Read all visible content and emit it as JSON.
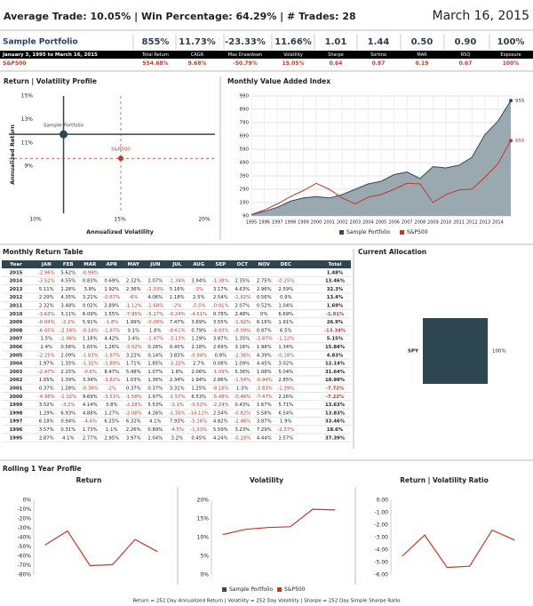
{
  "header": {
    "summary": "Average Trade: 10.05% | Win Percentage: 64.29% | # Trades: 28",
    "date": "March 16, 2015"
  },
  "stats": {
    "period": "January 3, 1995 to March 16, 2015",
    "headers": [
      "Total Return",
      "CAGR",
      "Max Drawdown",
      "Volatility",
      "Sharpe",
      "Sortino",
      "MAR",
      "RSQ",
      "Exposure"
    ],
    "rows": [
      {
        "name": "Sample Portfolio",
        "values": [
          "855%",
          "11.73%",
          "-23.33%",
          "11.66%",
          "1.01",
          "1.44",
          "0.50",
          "0.90",
          "100%"
        ]
      },
      {
        "name": "S&P500",
        "values": [
          "554.68%",
          "9.68%",
          "-50.79%",
          "15.05%",
          "0.64",
          "0.87",
          "0.19",
          "0.67",
          "100%"
        ]
      }
    ]
  },
  "monthly_table": {
    "title": "Monthly Return Table",
    "header": [
      "Year",
      "JAN",
      "FEB",
      "MAR",
      "APR",
      "MAY",
      "JUN",
      "JUL",
      "AUG",
      "SEP",
      "OCT",
      "NOV",
      "DEC",
      "Total"
    ],
    "rows": [
      [
        "2015",
        "-2.96%",
        "5.62%",
        "-0.99%",
        null,
        null,
        null,
        null,
        null,
        null,
        null,
        null,
        null,
        "1.48%"
      ],
      [
        "2014",
        "-3.52%",
        "4.55%",
        "0.83%",
        "0.69%",
        "2.32%",
        "2.07%",
        "-1.34%",
        "3.94%",
        "-1.38%",
        "2.35%",
        "2.75%",
        "-0.25%",
        "13.46%"
      ],
      [
        "2013",
        "5.11%",
        "1.28%",
        "3.8%",
        "1.92%",
        "2.36%",
        "-1.33%",
        "5.16%",
        "-3%",
        "3.17%",
        "4.63%",
        "2.96%",
        "2.59%",
        "32.3%"
      ],
      [
        "2012",
        "2.29%",
        "4.35%",
        "3.21%",
        "-0.67%",
        "-6%",
        "4.06%",
        "1.18%",
        "2.5%",
        "2.54%",
        "-1.82%",
        "0.56%",
        "0.9%",
        "13.4%"
      ],
      [
        "2011",
        "2.32%",
        "3.48%",
        "0.02%",
        "2.89%",
        "-1.12%",
        "-1.68%",
        "-2%",
        "-5.5%",
        "-0.01%",
        "2.07%",
        "0.52%",
        "1.04%",
        "1.69%"
      ],
      [
        "2010",
        "-3.63%",
        "3.11%",
        "6.09%",
        "1.55%",
        "-7.95%",
        "-5.17%",
        "-0.24%",
        "-4.51%",
        "0.78%",
        "2.48%",
        "0%",
        "6.69%",
        "-1.91%"
      ],
      [
        "2009",
        "-0.04%",
        "-2.2%",
        "5.91%",
        "-1.8%",
        "1.99%",
        "-0.06%",
        "7.47%",
        "3.69%",
        "3.55%",
        "-1.92%",
        "6.16%",
        "1.91%",
        "26.9%"
      ],
      [
        "2008",
        "-6.05%",
        "-2.58%",
        "-0.14%",
        "-1.97%",
        "0.1%",
        "1.8%",
        "-0.61%",
        "0.79%",
        "-4.03%",
        "-8.09%",
        "0.87%",
        "6.5%",
        "-13.34%"
      ],
      [
        "2007",
        "1.5%",
        "-1.96%",
        "1.16%",
        "4.42%",
        "3.4%",
        "-1.47%",
        "-3.13%",
        "1.29%",
        "3.87%",
        "1.35%",
        "-3.87%",
        "-1.12%",
        "5.15%"
      ],
      [
        "2006",
        "2.4%",
        "0.58%",
        "1.65%",
        "1.26%",
        "-3.02%",
        "0.26%",
        "0.45%",
        "2.18%",
        "2.69%",
        "3.16%",
        "1.98%",
        "1.34%",
        "15.84%"
      ],
      [
        "2005",
        "-2.25%",
        "2.09%",
        "-1.83%",
        "-1.87%",
        "3.22%",
        "0.14%",
        "3.83%",
        "-0.94%",
        "0.8%",
        "-2.36%",
        "4.39%",
        "-0.18%",
        "4.83%"
      ],
      [
        "2004",
        "1.97%",
        "1.35%",
        "-1.32%",
        "-1.89%",
        "1.71%",
        "1.85%",
        "-3.22%",
        "2.7%",
        "0.08%",
        "1.09%",
        "4.45%",
        "3.02%",
        "12.14%"
      ],
      [
        "2003",
        "-2.47%",
        "2.15%",
        "-0.6%",
        "8.47%",
        "5.48%",
        "1.07%",
        "1.8%",
        "2.06%",
        "-1.09%",
        "5.36%",
        "1.08%",
        "5.04%",
        "31.64%"
      ],
      [
        "2002",
        "1.05%",
        "1.39%",
        "3.34%",
        "-3.82%",
        "1.03%",
        "1.36%",
        "2.34%",
        "2.94%",
        "2.86%",
        "-1.54%",
        "-0.94%",
        "2.85%",
        "10.99%"
      ],
      [
        "2001",
        "0.37%",
        "1.28%",
        "-0.36%",
        "-2%",
        "0.37%",
        "0.37%",
        "3.31%",
        "1.25%",
        "-8.16%",
        "1.3%",
        "-3.83%",
        "-1.39%",
        "-7.72%"
      ],
      [
        "2000",
        "-4.98%",
        "-1.32%",
        "9.69%",
        "-3.51%",
        "-1.58%",
        "1.97%",
        "-1.57%",
        "6.53%",
        "-5.48%",
        "-0.46%",
        "-7.47%",
        "2.26%",
        "-7.22%"
      ],
      [
        "1999",
        "3.52%",
        "-3.2%",
        "4.14%",
        "3.8%",
        "-2.28%",
        "5.53%",
        "-3.1%",
        "-0.52%",
        "-2.24%",
        "0.43%",
        "1.67%",
        "5.71%",
        "13.63%"
      ],
      [
        "1998",
        "1.29%",
        "6.93%",
        "4.88%",
        "1.27%",
        "-2.08%",
        "4.26%",
        "-1.35%",
        "-14.11%",
        "2.54%",
        "-0.82%",
        "5.58%",
        "6.54%",
        "13.83%"
      ],
      [
        "1997",
        "6.18%",
        "0.94%",
        "-4.4%",
        "6.25%",
        "6.32%",
        "4.1%",
        "7.93%",
        "-5.16%",
        "4.82%",
        "-2.46%",
        "3.87%",
        "1.9%",
        "33.46%"
      ],
      [
        "1996",
        "3.57%",
        "0.31%",
        "1.73%",
        "1.1%",
        "2.26%",
        "0.89%",
        "-4.5%",
        "-1.33%",
        "5.59%",
        "3.23%",
        "7.29%",
        "-2.37%",
        "18.6%"
      ],
      [
        "1995",
        "2.87%",
        "4.1%",
        "2.77%",
        "2.95%",
        "3.97%",
        "2.04%",
        "3.2%",
        "0.45%",
        "4.24%",
        "-0.29%",
        "4.44%",
        "1.57%",
        "37.39%"
      ]
    ]
  },
  "rolling": {
    "title": "Rolling 1 Year Profile",
    "footnote": "Return = 252 Day Annualized Return | Volatility = 252 Day Volatility | Sharpe = 252 Day Simple Sharpe Ratio"
  },
  "chart_data": [
    {
      "type": "scatter",
      "title": "Return | Volatility Profile",
      "x_label": "Annualized Volatility",
      "y_label": "Annualized Return",
      "series": [
        {
          "name": "Sample Portfolio",
          "color": "#2e4650",
          "x": [
            11.66
          ],
          "values": [
            11.73
          ]
        },
        {
          "name": "S&P500",
          "color": "#c0392b",
          "x": [
            15.05
          ],
          "values": [
            9.68
          ]
        }
      ],
      "xlim": [
        10,
        20
      ],
      "xticks": [
        {
          "value": 10,
          "label": "10%"
        },
        {
          "value": 15,
          "label": "15%"
        },
        {
          "value": 20,
          "label": "20%"
        }
      ],
      "ylim": [
        5,
        15
      ],
      "yticks": [
        {
          "value": 9,
          "label": "9%"
        },
        {
          "value": 11,
          "label": "11%"
        },
        {
          "value": 13,
          "label": "13%"
        },
        {
          "value": 15,
          "label": "15%"
        }
      ]
    },
    {
      "type": "line",
      "title": "Monthly Value Added Index",
      "grid": true,
      "end_labels": true,
      "x": [
        1995,
        1996,
        1997,
        1998,
        1999,
        2000,
        2001,
        2002,
        2003,
        2004,
        2005,
        2006,
        2007,
        2008,
        2009,
        2010,
        2011,
        2012,
        2013,
        2014,
        2015
      ],
      "series": [
        {
          "name": "Sample Portfolio",
          "color": "#34495e",
          "area": "#9aa9b0",
          "values": [
            100,
            125,
            155,
            200,
            225,
            235,
            225,
            250,
            290,
            330,
            350,
            400,
            420,
            370,
            460,
            450,
            470,
            530,
            700,
            800,
            955
          ]
        },
        {
          "name": "S&P500",
          "color": "#c0392b",
          "values": [
            100,
            135,
            180,
            235,
            280,
            335,
            290,
            225,
            180,
            230,
            250,
            290,
            335,
            330,
            190,
            250,
            285,
            290,
            380,
            480,
            655
          ]
        }
      ],
      "xlim": [
        1995,
        2015
      ],
      "xticks": [
        1995,
        1996,
        1997,
        1998,
        1999,
        2000,
        2001,
        2002,
        2003,
        2004,
        2005,
        2006,
        2007,
        2008,
        2009,
        2010,
        2011,
        2012,
        2013,
        2014
      ],
      "ylim": [
        90,
        990
      ],
      "yticks": [
        90,
        190,
        290,
        390,
        490,
        590,
        690,
        790,
        890,
        990
      ]
    },
    {
      "type": "bar",
      "title": "Current Allocation",
      "orientation": "horizontal",
      "categories": [
        "SPY"
      ],
      "values": [
        100
      ],
      "value_labels": [
        "100%"
      ],
      "color": "#2e4650",
      "xlim": [
        0,
        100
      ]
    },
    {
      "type": "line",
      "title": "Return",
      "categories": [
        null,
        null,
        null,
        null,
        null,
        null
      ],
      "series": [
        {
          "name": "S&P500",
          "color": "#c0392b",
          "values": [
            -48,
            -33,
            -70,
            -69,
            -42,
            -55
          ]
        }
      ],
      "ylim": [
        -80,
        0
      ],
      "yticks": [
        {
          "value": 0,
          "label": "0%"
        },
        {
          "value": -10,
          "label": "-10%"
        },
        {
          "value": -20,
          "label": "-20%"
        },
        {
          "value": -30,
          "label": "-30%"
        },
        {
          "value": -40,
          "label": "-40%"
        },
        {
          "value": -50,
          "label": "-50%"
        },
        {
          "value": -60,
          "label": "-60%"
        },
        {
          "value": -70,
          "label": "-70%"
        },
        {
          "value": -80,
          "label": "-80%"
        }
      ]
    },
    {
      "type": "line",
      "title": "Volatility",
      "categories": [
        null,
        null,
        null,
        null,
        null,
        null
      ],
      "series": [
        {
          "name": "S&P500",
          "color": "#c0392b",
          "values": [
            10.8,
            12.2,
            12.7,
            12.9,
            17.6,
            17.4
          ]
        }
      ],
      "ylim": [
        0,
        20
      ],
      "yticks": [
        {
          "value": 0,
          "label": "0%"
        },
        {
          "value": 5,
          "label": "5%"
        },
        {
          "value": 10,
          "label": "10%"
        },
        {
          "value": 15,
          "label": "15%"
        },
        {
          "value": 20,
          "label": "20%"
        }
      ]
    },
    {
      "type": "line",
      "title": "Return | Volatility Ratio",
      "categories": [
        null,
        null,
        null,
        null,
        null,
        null
      ],
      "series": [
        {
          "name": "S&P500",
          "color": "#c0392b",
          "values": [
            -4.5,
            -2.8,
            -5.4,
            -5.3,
            -2.4,
            -3.2
          ]
        }
      ],
      "ylim": [
        -6,
        0
      ],
      "yticks": [
        {
          "value": 0,
          "label": "0.00"
        },
        {
          "value": -1,
          "label": "-1.00"
        },
        {
          "value": -2,
          "label": "-2.00"
        },
        {
          "value": -3,
          "label": "-3.00"
        },
        {
          "value": -4,
          "label": "-4.00"
        },
        {
          "value": -5,
          "label": "-5.00"
        },
        {
          "value": -6,
          "label": "-6.00"
        }
      ]
    }
  ]
}
